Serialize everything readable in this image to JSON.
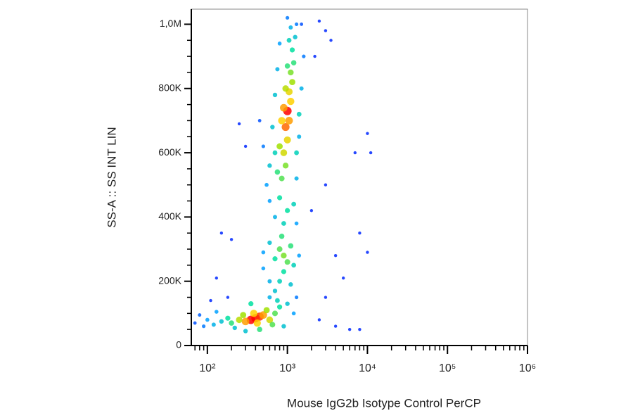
{
  "chart_data": {
    "type": "scatter",
    "xlabel": "Mouse IgG2b Isotype Control PerCP",
    "ylabel": "SS-A :: SS INT LIN",
    "xscale": "log",
    "xlim": [
      63,
      1000000
    ],
    "ylim": [
      0,
      1047000
    ],
    "xticks": [
      {
        "value": 100,
        "label": "10²"
      },
      {
        "value": 1000,
        "label": "10³"
      },
      {
        "value": 10000,
        "label": "10⁴"
      },
      {
        "value": 100000,
        "label": "10⁵"
      },
      {
        "value": 1000000,
        "label": "10⁶"
      }
    ],
    "xminorticks": [
      70,
      80,
      90,
      200,
      300,
      400,
      500,
      600,
      700,
      800,
      900,
      2000,
      3000,
      4000,
      5000,
      6000,
      7000,
      8000,
      9000,
      20000,
      30000,
      40000,
      50000,
      60000,
      70000,
      80000,
      90000,
      200000,
      300000,
      400000,
      500000,
      600000,
      700000,
      800000,
      900000
    ],
    "yticks": [
      0,
      {
        "value": 200000,
        "label": "200K"
      },
      {
        "value": 400000,
        "label": "400K"
      },
      {
        "value": 600000,
        "label": "600K"
      },
      {
        "value": 800000,
        "label": "800K"
      },
      {
        "value": 1000000,
        "label": "1,0M"
      }
    ],
    "yminorticks": [
      50000,
      100000,
      150000,
      250000,
      300000,
      350000,
      450000,
      500000,
      550000,
      650000,
      700000,
      750000,
      850000,
      900000,
      950000
    ],
    "colormap": [
      "#0000ff",
      "#00a0ff",
      "#00e0a0",
      "#a0e000",
      "#ffd000",
      "#ff0000"
    ],
    "x": [
      400,
      350,
      450,
      300,
      500,
      380,
      420,
      250,
      600,
      550,
      280,
      200,
      700,
      650,
      180,
      800,
      150,
      120,
      100,
      90,
      80,
      70,
      900,
      1000,
      750,
      350,
      450,
      220,
      130,
      1200,
      1300,
      600,
      300,
      700,
      800,
      600,
      900,
      500,
      1100,
      900,
      800,
      1000,
      700,
      1100,
      600,
      1200,
      850,
      500,
      1400,
      900,
      1000,
      700,
      1200,
      800,
      600,
      1300,
      850,
      750,
      950,
      900,
      800,
      1000,
      950,
      850,
      1050,
      1000,
      900,
      1100,
      1050,
      950,
      1150,
      1100,
      1000,
      1200,
      1150,
      1050,
      1250,
      1100,
      1300,
      1000,
      1500,
      600,
      1300,
      650,
      1400,
      700,
      1500,
      750,
      1600,
      800,
      1400,
      700,
      500,
      450,
      550,
      1300,
      250,
      300,
      200,
      150,
      130,
      2500,
      3000,
      3500,
      2200,
      10000,
      11000,
      7000,
      10000,
      8000,
      5000,
      4000,
      3000,
      6000,
      8000,
      2500,
      4000,
      2000,
      3000,
      180,
      110
    ],
    "values": [
      85000,
      80000,
      90000,
      75000,
      95000,
      100000,
      70000,
      80000,
      80000,
      110000,
      95000,
      70000,
      100000,
      65000,
      85000,
      120000,
      75000,
      65000,
      80000,
      60000,
      95000,
      70000,
      60000,
      130000,
      140000,
      130000,
      50000,
      55000,
      105000,
      100000,
      150000,
      150000,
      45000,
      170000,
      200000,
      200000,
      230000,
      240000,
      190000,
      280000,
      300000,
      260000,
      270000,
      310000,
      320000,
      250000,
      340000,
      290000,
      280000,
      380000,
      420000,
      400000,
      440000,
      460000,
      450000,
      380000,
      520000,
      540000,
      560000,
      600000,
      620000,
      640000,
      680000,
      700000,
      700000,
      730000,
      740000,
      760000,
      790000,
      800000,
      820000,
      850000,
      870000,
      880000,
      920000,
      950000,
      960000,
      990000,
      1000000,
      1020000,
      1000000,
      560000,
      600000,
      680000,
      720000,
      780000,
      800000,
      860000,
      900000,
      940000,
      650000,
      600000,
      620000,
      700000,
      500000,
      520000,
      690000,
      620000,
      330000,
      350000,
      210000,
      1010000,
      980000,
      950000,
      900000,
      660000,
      600000,
      600000,
      290000,
      350000,
      210000,
      280000,
      150000,
      50000,
      50000,
      80000,
      60000,
      420000,
      500000,
      150000,
      140000
    ],
    "density": [
      1,
      1,
      0.95,
      0.85,
      0.85,
      0.8,
      0.8,
      0.65,
      0.7,
      0.6,
      0.6,
      0.45,
      0.5,
      0.5,
      0.4,
      0.4,
      0.3,
      0.25,
      0.2,
      0.15,
      0.12,
      0.1,
      0.3,
      0.3,
      0.35,
      0.4,
      0.45,
      0.3,
      0.2,
      0.2,
      0.15,
      0.25,
      0.3,
      0.3,
      0.35,
      0.25,
      0.4,
      0.2,
      0.3,
      0.55,
      0.5,
      0.5,
      0.4,
      0.45,
      0.3,
      0.35,
      0.45,
      0.2,
      0.2,
      0.35,
      0.4,
      0.25,
      0.35,
      0.4,
      0.2,
      0.2,
      0.5,
      0.45,
      0.55,
      0.7,
      0.6,
      0.75,
      0.9,
      0.8,
      0.85,
      1,
      0.85,
      0.8,
      0.75,
      0.65,
      0.6,
      0.55,
      0.45,
      0.45,
      0.4,
      0.35,
      0.3,
      0.25,
      0.15,
      0.15,
      0.1,
      0.3,
      0.35,
      0.3,
      0.35,
      0.3,
      0.25,
      0.25,
      0.15,
      0.2,
      0.25,
      0.35,
      0.15,
      0.1,
      0.2,
      0.25,
      0.05,
      0.05,
      0.05,
      0.05,
      0.05,
      0.05,
      0.05,
      0.05,
      0.05,
      0.05,
      0.05,
      0.05,
      0.05,
      0.05,
      0.05,
      0.05,
      0.05,
      0.05,
      0.05,
      0.05,
      0.05,
      0.05,
      0.05,
      0.05,
      0.05
    ]
  }
}
